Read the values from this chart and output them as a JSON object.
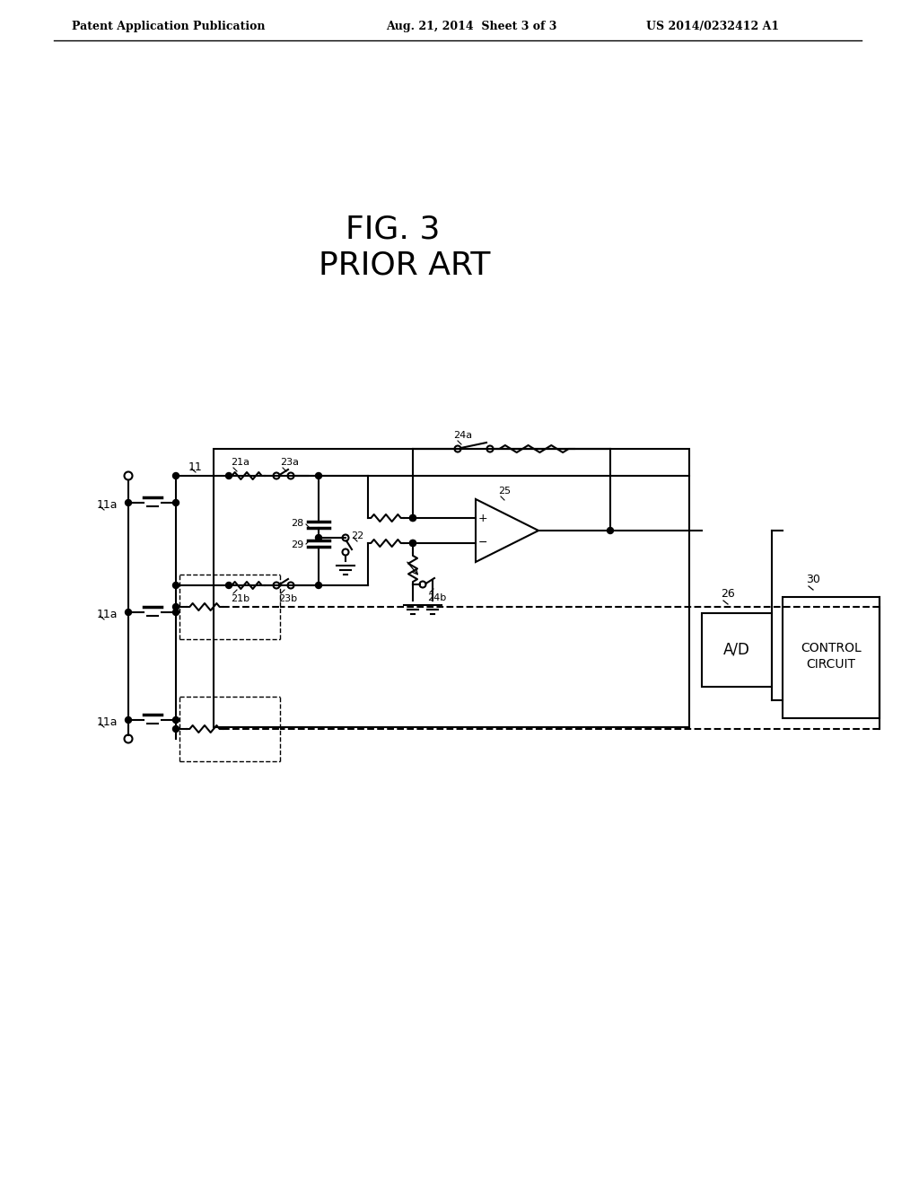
{
  "bg_color": "#ffffff",
  "header_left": "Patent Application Publication",
  "header_mid": "Aug. 21, 2014  Sheet 3 of 3",
  "header_right": "US 2014/0232412 A1",
  "fig_title": "FIG. 3",
  "fig_subtitle": "PRIOR ART",
  "line_color": "#000000",
  "lw": 1.5,
  "lw_thin": 1.0,
  "lw_thick": 2.0
}
